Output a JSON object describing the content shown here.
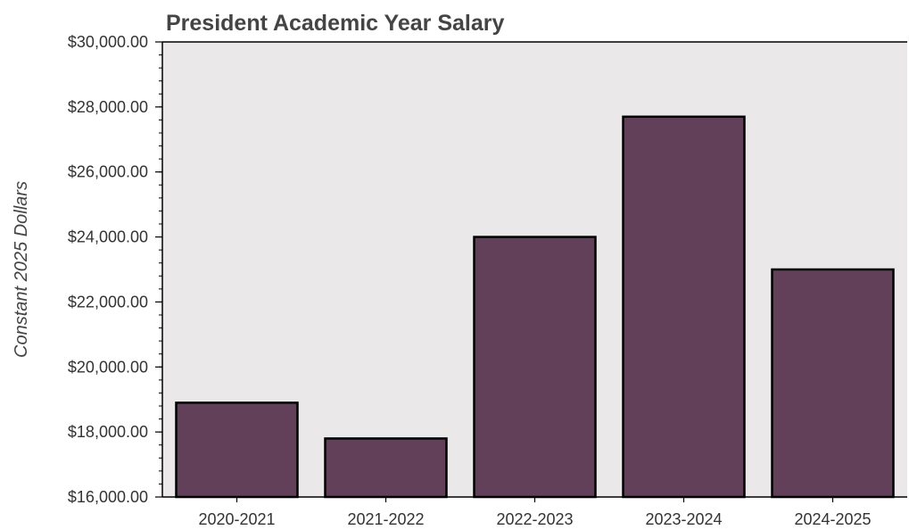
{
  "chart_data": {
    "type": "bar",
    "title": "President Academic Year Salary",
    "xlabel": "",
    "ylabel": "Constant 2025 Dollars",
    "categories": [
      "2020-2021",
      "2021-2022",
      "2022-2023",
      "2023-2024",
      "2024-2025"
    ],
    "values": [
      18900,
      17800,
      24000,
      27700,
      23000
    ],
    "ylim": [
      16000,
      30000
    ],
    "yticks": [
      16000,
      18000,
      20000,
      22000,
      24000,
      26000,
      28000,
      30000
    ],
    "ytick_labels": [
      "$16,000.00",
      "$18,000.00",
      "$20,000.00",
      "$22,000.00",
      "$24,000.00",
      "$26,000.00",
      "$28,000.00",
      "$30,000.00"
    ],
    "grid": false,
    "legend": "none",
    "colors": {
      "bar_fill": "#62405a",
      "bar_stroke": "#000000",
      "plot_background": "#ebe8ea"
    }
  }
}
